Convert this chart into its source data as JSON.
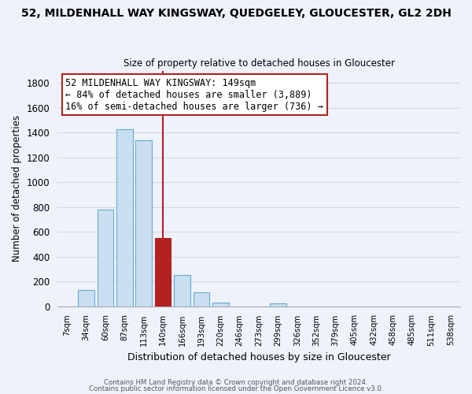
{
  "title": "52, MILDENHALL WAY KINGSWAY, QUEDGELEY, GLOUCESTER, GL2 2DH",
  "subtitle": "Size of property relative to detached houses in Gloucester",
  "xlabel": "Distribution of detached houses by size in Gloucester",
  "ylabel": "Number of detached properties",
  "bar_labels": [
    "7sqm",
    "34sqm",
    "60sqm",
    "87sqm",
    "113sqm",
    "140sqm",
    "166sqm",
    "193sqm",
    "220sqm",
    "246sqm",
    "273sqm",
    "299sqm",
    "326sqm",
    "352sqm",
    "379sqm",
    "405sqm",
    "432sqm",
    "458sqm",
    "485sqm",
    "511sqm",
    "538sqm"
  ],
  "bar_values": [
    0,
    130,
    780,
    1430,
    1340,
    550,
    250,
    110,
    30,
    0,
    0,
    20,
    0,
    0,
    0,
    0,
    0,
    0,
    0,
    0,
    0
  ],
  "highlight_bar_index": 5,
  "highlight_color": "#b22222",
  "bar_color": "#c8dff0",
  "bar_edge_color": "#6aaad4",
  "vline_x": 5,
  "ylim": [
    0,
    1900
  ],
  "yticks": [
    0,
    200,
    400,
    600,
    800,
    1000,
    1200,
    1400,
    1600,
    1800
  ],
  "annotation_line1": "52 MILDENHALL WAY KINGSWAY: 149sqm",
  "annotation_line2": "← 84% of detached houses are smaller (3,889)",
  "annotation_line3": "16% of semi-detached houses are larger (736) →",
  "footer1": "Contains HM Land Registry data © Crown copyright and database right 2024.",
  "footer2": "Contains public sector information licensed under the Open Government Licence v3.0.",
  "background_color": "#eef2fb",
  "grid_color": "#d0d8e8",
  "spine_color": "#aaaaaa"
}
